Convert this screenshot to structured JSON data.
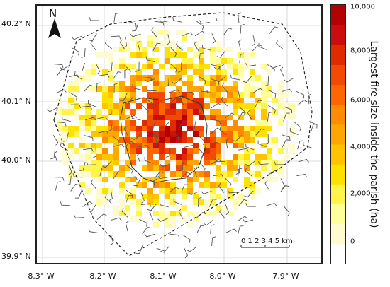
{
  "map": {
    "y_ticks": [
      "40.2° N",
      "40.1° N",
      "40.0° N",
      "39.9° N"
    ],
    "x_ticks": [
      "8.3° W",
      "8.2° W",
      "8.1° W",
      "8.0° W",
      "7.9° W"
    ],
    "north_label": "N",
    "scale_label": "0 1 2 3 4 5 km"
  },
  "colorbar": {
    "label": "Largest fire size inside the parish (ha)",
    "ticks": [
      "10,000",
      "8,000",
      "6,000",
      "4,000",
      "2,000",
      "0"
    ],
    "colors": [
      "#ffffff",
      "#fffbd0",
      "#ffff99",
      "#fff44a",
      "#ffe100",
      "#ffc300",
      "#ffa700",
      "#ff8c00",
      "#ff6600",
      "#f24a00",
      "#e02a00",
      "#cc0d0d",
      "#b30000"
    ]
  },
  "colors": {
    "frame": "#222222",
    "wind_barb": "#555555",
    "hull": "#222222"
  }
}
